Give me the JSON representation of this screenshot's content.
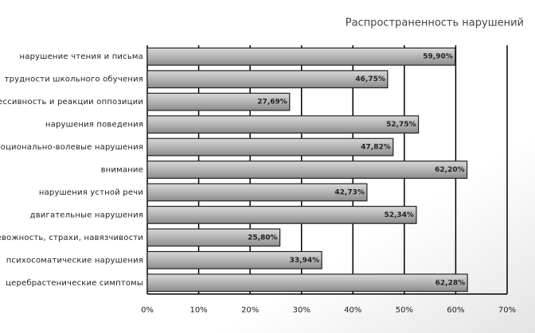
{
  "chart_data": {
    "type": "bar",
    "orientation": "horizontal",
    "title": "Распространенность нарушений",
    "categories": [
      "нарушение чтения и письма",
      "трудности школьного обучения",
      "агрессивность и реакции оппозиции",
      "нарушения поведения",
      "эмоционально-волевые нарушения",
      "внимание",
      "нарушения устной речи",
      "двигательные нарушения",
      "тревожность, страхи, навязчивости",
      "психосоматические нарушения",
      "церебрастенические симптомы"
    ],
    "values": [
      59.9,
      46.75,
      27.69,
      52.75,
      47.82,
      62.2,
      42.73,
      52.34,
      25.8,
      33.94,
      62.28
    ],
    "value_labels": [
      "59,90%",
      "46,75%",
      "27,69%",
      "52,75%",
      "47,82%",
      "62,20%",
      "42,73%",
      "52,34%",
      "25,80%",
      "33,94%",
      "62,28%"
    ],
    "color": "#b0b0b0",
    "xlim": [
      0,
      70
    ],
    "xticks": [
      {
        "value": 0,
        "label": "0%"
      },
      {
        "value": 10,
        "label": "10%"
      },
      {
        "value": 20,
        "label": "20%"
      },
      {
        "value": 30,
        "label": "30%"
      },
      {
        "value": 40,
        "label": "40%"
      },
      {
        "value": 50,
        "label": "50%"
      },
      {
        "value": 60,
        "label": "60%"
      },
      {
        "value": 70,
        "label": "70%"
      }
    ],
    "grid": true
  }
}
